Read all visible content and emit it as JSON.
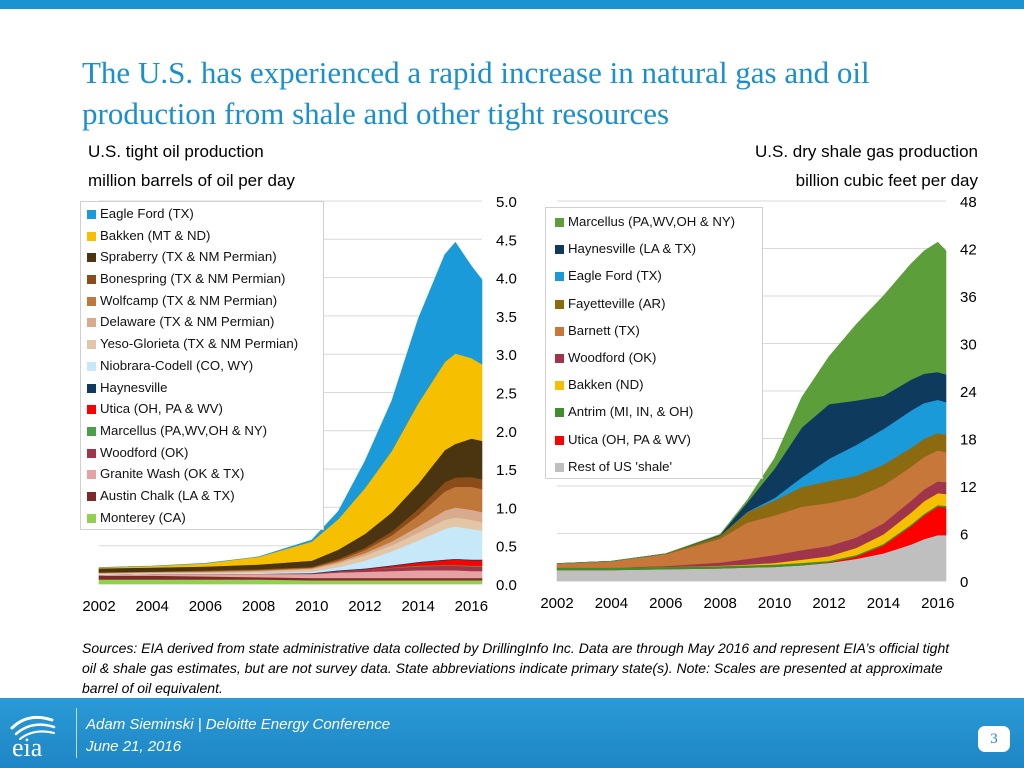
{
  "slide_title": "The U.S. has experienced a rapid increase in natural gas and oil production from shale and other tight resources",
  "colors": {
    "accent": "#1a8fd0",
    "footer_bg": "#1f86c6"
  },
  "chart_data": [
    {
      "type": "area",
      "stacked": true,
      "title": "U.S. tight oil production",
      "unit_label": "million barrels of oil per day",
      "x": [
        2002,
        2004,
        2006,
        2008,
        2010,
        2011,
        2012,
        2013,
        2014,
        2015,
        2015.4,
        2016,
        2016.4
      ],
      "x_tick_labels": [
        "2002",
        "2004",
        "2006",
        "2008",
        "2010",
        "2012",
        "2014",
        "2016"
      ],
      "y_tick_labels": [
        "0.0",
        "0.5",
        "1.0",
        "1.5",
        "2.0",
        "2.5",
        "3.0",
        "3.5",
        "4.0",
        "4.5",
        "5.0"
      ],
      "xlim": [
        2002,
        2016.4
      ],
      "ylim": [
        0,
        5.0
      ],
      "y_axis_side": "right",
      "legend_position": "top-left",
      "series": [
        {
          "name": "Monterey (CA)",
          "color": "#92d050",
          "values": [
            0.06,
            0.06,
            0.06,
            0.06,
            0.05,
            0.05,
            0.05,
            0.05,
            0.05,
            0.05,
            0.05,
            0.05,
            0.05
          ]
        },
        {
          "name": "Austin Chalk (LA & TX)",
          "color": "#7f2a2a",
          "values": [
            0.05,
            0.05,
            0.04,
            0.03,
            0.03,
            0.03,
            0.03,
            0.03,
            0.03,
            0.03,
            0.03,
            0.03,
            0.03
          ]
        },
        {
          "name": "Granite Wash (OK & TX)",
          "color": "#e6a2a2",
          "values": [
            0.01,
            0.02,
            0.03,
            0.04,
            0.05,
            0.07,
            0.08,
            0.09,
            0.1,
            0.1,
            0.1,
            0.09,
            0.09
          ]
        },
        {
          "name": "Woodford (OK)",
          "color": "#a0344b",
          "values": [
            0,
            0,
            0,
            0.005,
            0.01,
            0.02,
            0.03,
            0.04,
            0.05,
            0.06,
            0.06,
            0.06,
            0.06
          ]
        },
        {
          "name": "Marcellus (PA,WV,OH & NY)",
          "color": "#4aa048",
          "values": [
            0,
            0,
            0,
            0,
            0,
            0,
            0,
            0.005,
            0.01,
            0.01,
            0.01,
            0.01,
            0.01
          ]
        },
        {
          "name": "Utica (OH, PA & WV)",
          "color": "#ff0000",
          "values": [
            0,
            0,
            0,
            0,
            0,
            0,
            0.005,
            0.02,
            0.04,
            0.06,
            0.07,
            0.07,
            0.07
          ]
        },
        {
          "name": "Haynesville",
          "color": "#0e3a5e",
          "values": [
            0,
            0,
            0,
            0,
            0.005,
            0.01,
            0.01,
            0.01,
            0.01,
            0.01,
            0.01,
            0.01,
            0.01
          ]
        },
        {
          "name": "Niobrara-Codell (CO, WY)",
          "color": "#c6e8f8",
          "values": [
            0.01,
            0.01,
            0.01,
            0.01,
            0.02,
            0.04,
            0.1,
            0.18,
            0.28,
            0.4,
            0.42,
            0.4,
            0.38
          ]
        },
        {
          "name": "Yeso-Glorieta (TX & NM Permian)",
          "color": "#e3c6a6",
          "values": [
            0.01,
            0.01,
            0.01,
            0.02,
            0.03,
            0.05,
            0.07,
            0.08,
            0.1,
            0.12,
            0.12,
            0.12,
            0.11
          ]
        },
        {
          "name": "Delaware (TX & NM Permian)",
          "color": "#d8ab8f",
          "values": [
            0.005,
            0.005,
            0.01,
            0.01,
            0.01,
            0.02,
            0.03,
            0.05,
            0.08,
            0.12,
            0.13,
            0.13,
            0.13
          ]
        },
        {
          "name": "Wolfcamp (TX & NM Permian)",
          "color": "#c07838",
          "values": [
            0.005,
            0.005,
            0.01,
            0.01,
            0.01,
            0.02,
            0.04,
            0.08,
            0.15,
            0.25,
            0.27,
            0.3,
            0.3
          ]
        },
        {
          "name": "Bonespring (TX & NM Permian)",
          "color": "#8a4d1a",
          "values": [
            0.005,
            0.005,
            0.01,
            0.01,
            0.01,
            0.02,
            0.03,
            0.05,
            0.08,
            0.12,
            0.12,
            0.13,
            0.13
          ]
        },
        {
          "name": "Spraberry (TX & NM Permian)",
          "color": "#4a3510",
          "values": [
            0.05,
            0.05,
            0.05,
            0.06,
            0.08,
            0.12,
            0.18,
            0.25,
            0.33,
            0.42,
            0.44,
            0.5,
            0.5
          ]
        },
        {
          "name": "Bakken (MT & ND)",
          "color": "#f6c000",
          "values": [
            0.01,
            0.02,
            0.04,
            0.1,
            0.25,
            0.4,
            0.6,
            0.8,
            1.05,
            1.15,
            1.18,
            1.05,
            1.0
          ]
        },
        {
          "name": "Eagle Ford (TX)",
          "color": "#1a9ad9",
          "values": [
            0,
            0,
            0,
            0,
            0.02,
            0.1,
            0.35,
            0.65,
            1.1,
            1.4,
            1.45,
            1.2,
            1.1
          ]
        }
      ]
    },
    {
      "type": "area",
      "stacked": true,
      "title": "U.S. dry shale gas production",
      "unit_label": "billion cubic feet per day",
      "x": [
        2002,
        2004,
        2006,
        2008,
        2009,
        2010,
        2011,
        2012,
        2013,
        2014,
        2015,
        2015.5,
        2016,
        2016.3
      ],
      "x_tick_labels": [
        "2002",
        "2004",
        "2006",
        "2008",
        "2010",
        "2012",
        "2014",
        "2016"
      ],
      "y_tick_labels": [
        "0",
        "6",
        "12",
        "18",
        "24",
        "30",
        "36",
        "42",
        "48"
      ],
      "xlim": [
        2002,
        2016.3
      ],
      "ylim": [
        0,
        48
      ],
      "y_axis_side": "right",
      "legend_position": "top-left",
      "series": [
        {
          "name": "Rest of US 'shale'",
          "color": "#bfbfbf",
          "values": [
            1.4,
            1.4,
            1.5,
            1.6,
            1.7,
            1.8,
            2.0,
            2.3,
            2.8,
            3.5,
            4.6,
            5.3,
            5.8,
            5.8
          ]
        },
        {
          "name": "Utica (OH, PA & WV)",
          "color": "#ff0000",
          "values": [
            0,
            0,
            0,
            0,
            0,
            0,
            0,
            0.05,
            0.3,
            1.0,
            2.3,
            3.0,
            3.6,
            3.5
          ]
        },
        {
          "name": "Antrim (MI, IN, & OH)",
          "color": "#3e8e2e",
          "values": [
            0.3,
            0.3,
            0.3,
            0.3,
            0.3,
            0.3,
            0.3,
            0.2,
            0.2,
            0.2,
            0.2,
            0.2,
            0.2,
            0.2
          ]
        },
        {
          "name": "Bakken (ND)",
          "color": "#f6c000",
          "values": [
            0,
            0,
            0,
            0.05,
            0.1,
            0.2,
            0.4,
            0.6,
            0.9,
            1.2,
            1.5,
            1.6,
            1.5,
            1.5
          ]
        },
        {
          "name": "Woodford (OK)",
          "color": "#a0344b",
          "values": [
            0,
            0,
            0.1,
            0.4,
            0.7,
            1.0,
            1.2,
            1.3,
            1.3,
            1.4,
            1.5,
            1.5,
            1.5,
            1.5
          ]
        },
        {
          "name": "Barnett (TX)",
          "color": "#c8773a",
          "values": [
            0.5,
            0.8,
            1.5,
            3.0,
            4.6,
            5.0,
            5.5,
            5.4,
            5.1,
            4.8,
            4.3,
            4.1,
            3.9,
            3.8
          ]
        },
        {
          "name": "Fayetteville (AR)",
          "color": "#8b6a10",
          "values": [
            0,
            0,
            0.05,
            0.4,
            1.3,
            1.9,
            2.5,
            2.8,
            2.7,
            2.6,
            2.4,
            2.3,
            2.2,
            2.2
          ]
        },
        {
          "name": "Eagle Ford (TX)",
          "color": "#1a9ad9",
          "values": [
            0,
            0,
            0,
            0,
            0.05,
            0.3,
            1.2,
            2.8,
            3.9,
            4.5,
            4.7,
            4.5,
            4.2,
            4.1
          ]
        },
        {
          "name": "Haynesville (LA & TX)",
          "color": "#0e3a5e",
          "values": [
            0,
            0,
            0,
            0.1,
            1.2,
            3.7,
            6.3,
            6.9,
            5.6,
            4.2,
            3.9,
            3.7,
            3.5,
            3.5
          ]
        },
        {
          "name": "Marcellus (PA,WV,OH & NY)",
          "color": "#5b9e3a",
          "values": [
            0,
            0,
            0,
            0.05,
            0.3,
            1.3,
            3.8,
            6.0,
            9.6,
            12.6,
            14.6,
            15.5,
            16.4,
            15.6
          ]
        }
      ]
    }
  ],
  "sources_note": "Sources: EIA derived from state administrative data collected by DrillingInfo Inc. Data are through May 2016  and represent EIA’s official tight oil & shale gas estimates, but are not survey data. State abbreviations indicate primary state(s).  Note: Scales are presented at approximate barrel of oil equivalent.",
  "footer": {
    "logo_text": "eia",
    "presenter_line": "Adam Sieminski | Deloitte Energy Conference",
    "date_line": "June 21, 2016",
    "page_number": "3"
  }
}
